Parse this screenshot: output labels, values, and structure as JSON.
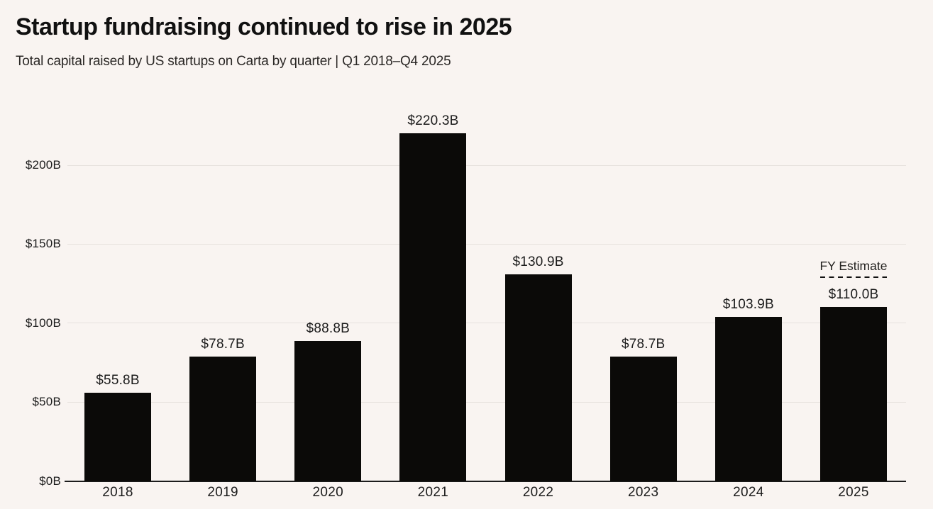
{
  "page": {
    "title": "Startup fundraising continued to rise in 2025",
    "subtitle": "Total capital raised by US startups on Carta by quarter | Q1 2018–Q4 2025"
  },
  "colors": {
    "background": "#f9f4f1",
    "bar": "#0b0a08",
    "gridline": "#e7e2de",
    "axis_line": "#1c1c1c",
    "title_text": "#111111",
    "label_text": "#1c1c1c"
  },
  "chart_data": {
    "type": "bar",
    "title": "Startup fundraising continued to rise in 2025",
    "subtitle": "Total capital raised by US startups on Carta by quarter | Q1 2018–Q4 2025",
    "unit": "USD billions",
    "categories": [
      "2018",
      "2019",
      "2020",
      "2021",
      "2022",
      "2023",
      "2024",
      "2025"
    ],
    "values": [
      55.8,
      78.7,
      88.8,
      220.3,
      130.9,
      78.7,
      103.9,
      110.0
    ],
    "bar_labels": [
      "$55.8B",
      "$78.7B",
      "$88.8B",
      "$220.3B",
      "$130.9B",
      "$78.7B",
      "$103.9B",
      "$110.0B"
    ],
    "xlabel": "",
    "ylabel": "",
    "ylim": [
      0,
      230
    ],
    "yticks": [
      0,
      50,
      100,
      150,
      200
    ],
    "ytick_labels": [
      "$0B",
      "$50B",
      "$100B",
      "$150B",
      "$200B"
    ],
    "grid": "horizontal",
    "legend": "none",
    "annotations": [
      {
        "applies_to": "2025",
        "label": "FY Estimate",
        "style": "dashed-line-above-bar"
      }
    ]
  }
}
